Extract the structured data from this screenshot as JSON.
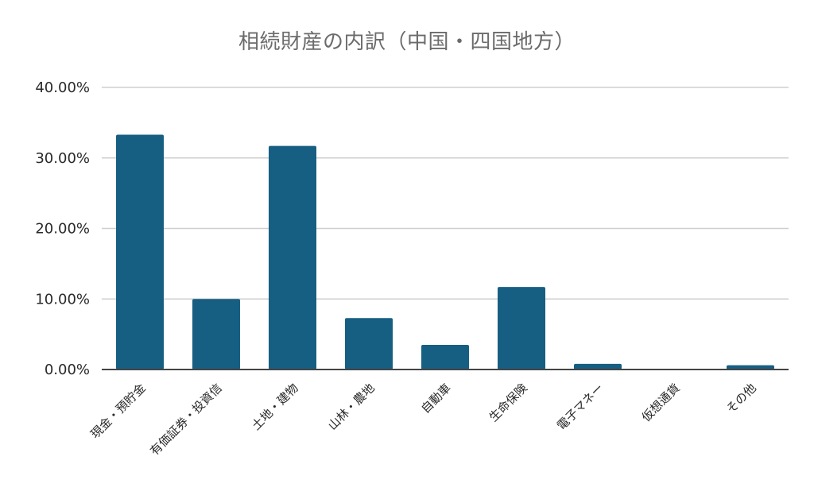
{
  "chart_data": {
    "type": "bar",
    "title": "相続財産の内訳（中国・四国地方）",
    "xlabel": "",
    "ylabel": "",
    "categories": [
      "現金・預貯金",
      "有価証券・投資信",
      "土地・建物",
      "山林・農地",
      "自動車",
      "生命保険",
      "電子マネー",
      "仮想通貨",
      "その他"
    ],
    "values": [
      33.3,
      10.0,
      31.7,
      7.3,
      3.5,
      11.7,
      0.8,
      0.1,
      0.6
    ],
    "ylim": [
      0,
      40
    ],
    "yticks": [
      0,
      10,
      20,
      30,
      40
    ],
    "ytick_labels": [
      "0.00%",
      "10.00%",
      "20.00%",
      "30.00%",
      "40.00%"
    ],
    "grid": true,
    "legend": "none",
    "colors": {
      "bar": "#175f82",
      "grid": "#cfcfcf",
      "axis": "#444444"
    }
  }
}
